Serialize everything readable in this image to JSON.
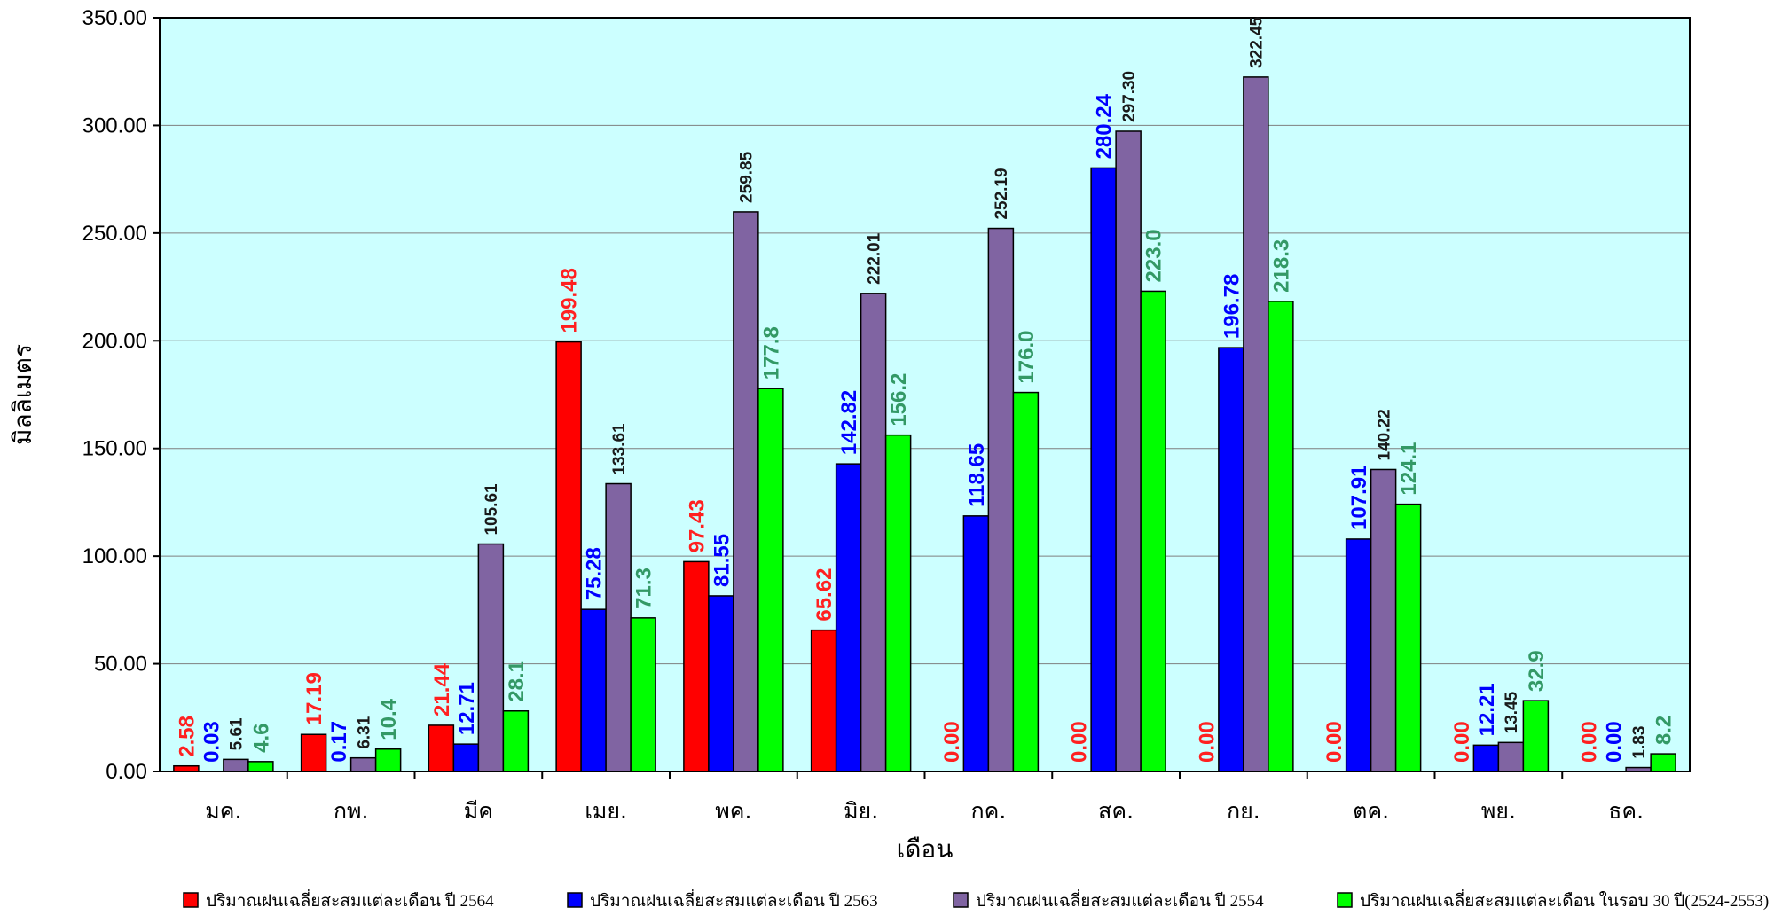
{
  "chart_data": {
    "type": "bar",
    "title": "",
    "xlabel": "เดือน",
    "ylabel": "มิลลิเมตร",
    "ylim": [
      0,
      350
    ],
    "yticks": [
      "0.00",
      "50.00",
      "100.00",
      "150.00",
      "200.00",
      "250.00",
      "300.00",
      "350.00"
    ],
    "grid": true,
    "legend_position": "bottom",
    "categories": [
      "มค.",
      "กพ.",
      "มีค",
      "เมย.",
      "พค.",
      "มิย.",
      "กค.",
      "สค.",
      "กย.",
      "ตค.",
      "พย.",
      "ธค."
    ],
    "series": [
      {
        "name": "ปริมาณฝนเฉลี่ยสะสมแต่ละเดือน ปี 2564",
        "color": "#ff0000",
        "label_color": "#ff2020",
        "values": [
          2.58,
          17.19,
          21.44,
          199.48,
          97.43,
          65.62,
          0.0,
          0.0,
          0.0,
          0.0,
          0.0,
          0.0
        ],
        "labels": [
          "2.58",
          "17.19",
          "21.44",
          "199.48",
          "97.43",
          "65.62",
          "0.00",
          "0.00",
          "0.00",
          "0.00",
          "0.00",
          "0.00"
        ]
      },
      {
        "name": "ปริมาณฝนเฉลี่ยสะสมแต่ละเดือน ปี 2563",
        "color": "#0000ff",
        "label_color": "#0000ff",
        "values": [
          0.03,
          0.17,
          12.71,
          75.28,
          81.55,
          142.82,
          118.65,
          280.24,
          196.78,
          107.91,
          12.21,
          0.0
        ],
        "labels": [
          "0.03",
          "0.17",
          "12.71",
          "75.28",
          "81.55",
          "142.82",
          "118.65",
          "280.24",
          "196.78",
          "107.91",
          "12.21",
          "0.00"
        ]
      },
      {
        "name": "ปริมาณฝนเฉลี่ยสะสมแต่ละเดือน ปี 2554",
        "color": "#8064a2",
        "label_color": "#1a1a1a",
        "values": [
          5.61,
          6.31,
          105.61,
          133.61,
          259.85,
          222.01,
          252.19,
          297.3,
          322.45,
          140.22,
          13.45,
          1.83
        ],
        "labels": [
          "5.61",
          "6.31",
          "105.61",
          "133.61",
          "259.85",
          "222.01",
          "252.19",
          "297.30",
          "322.45",
          "140.22",
          "13.45",
          "1.83"
        ]
      },
      {
        "name": "ปริมาณฝนเฉลี่ยสะสมแต่ละเดือน ในรอบ 30 ปี(2524-2553)",
        "color": "#00ff00",
        "label_color": "#339966",
        "values": [
          4.6,
          10.4,
          28.1,
          71.3,
          177.8,
          156.2,
          176.0,
          223.0,
          218.3,
          124.1,
          32.9,
          8.2
        ],
        "labels": [
          "4.6",
          "10.4",
          "28.1",
          "71.3",
          "177.8",
          "156.2",
          "176.0",
          "223.0",
          "218.3",
          "124.1",
          "32.9",
          "8.2"
        ]
      }
    ],
    "plot_background": "#ccffff"
  }
}
